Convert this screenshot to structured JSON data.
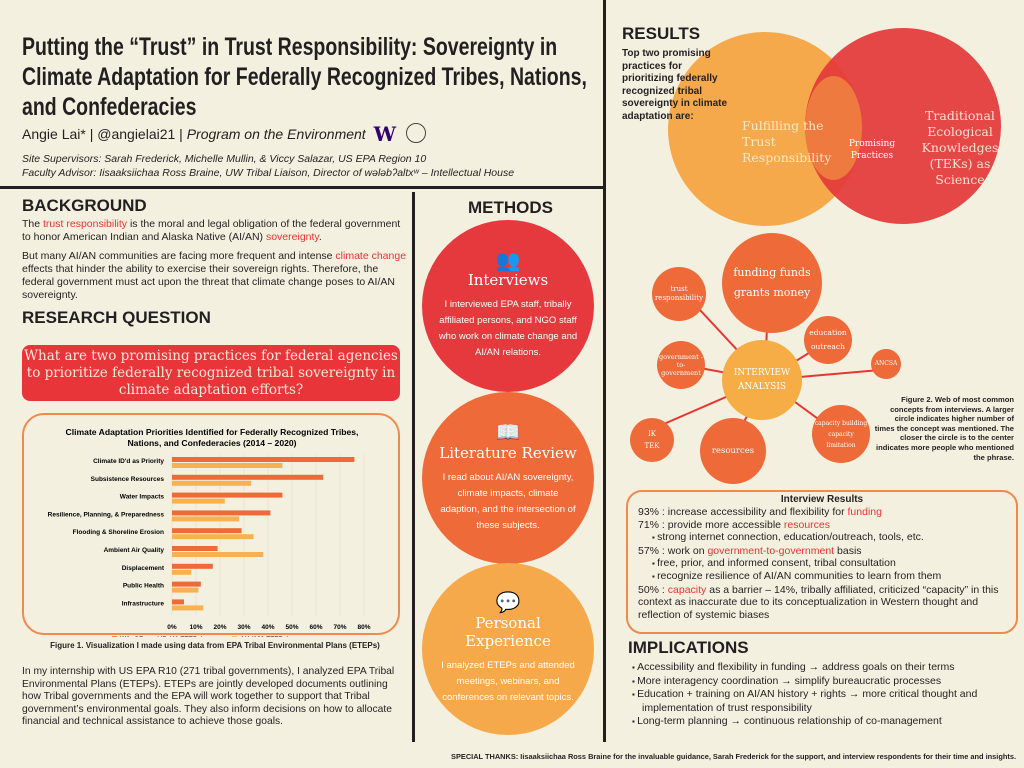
{
  "header": {
    "title": "Putting the “Trust” in Trust Responsibility: Sovereignty in Climate Adaptation for Federally Recognized Tribes, Nations, and Confederacies",
    "author": "Angie Lai* | @angielai21 |",
    "program": "Program on the Environment",
    "logo_uw": "W",
    "supervisors": "Site Supervisors: Sarah Frederick, Michelle Mullin, & Viccy Salazar, US EPA Region 10",
    "advisor": "Faculty Advisor: Iisaaksiichaa Ross Braine, UW Tribal Liaison, Director of wǝɫǝbʔaltxʷ – Intellectual House"
  },
  "background": {
    "heading": "BACKGROUND",
    "p1": [
      "The ",
      "trust responsibility",
      " is the moral and legal obligation of the federal government to honor American Indian and Alaska Native (AI/AN) ",
      "sovereignty",
      "."
    ],
    "p2": [
      "But many AI/AN communities are facing more frequent and intense ",
      "climate change",
      " effects that hinder the ability to exercise their sovereign rights. Therefore, the federal government must act upon the threat that climate change poses to AI/AN sovereignty."
    ]
  },
  "research_question": {
    "heading": "RESEARCH QUESTION",
    "text": "What are two promising practices for federal agencies to prioritize federally recognized tribal sovereignty in climate adaptation efforts?"
  },
  "chart_data": {
    "type": "bar",
    "orientation": "horizontal",
    "title": "Climate Adaptation Priorities Identified for Federally Recognized Tribes, Nations, and Confederacies (2014 – 2020)",
    "categories": [
      "Climate ID'd as Priority",
      "Subsistence Resources",
      "Water Impacts",
      "Resilience, Planning, & Preparedness",
      "Flooding & Shoreline Erosion",
      "Ambient Air Quality",
      "Displacement",
      "Public Health",
      "Infrastructure"
    ],
    "series": [
      {
        "name": "WA, OR, and ID (41 ETEPs)",
        "color": "#ee6a38",
        "values": [
          76,
          63,
          46,
          41,
          29,
          19,
          17,
          12,
          5
        ]
      },
      {
        "name": "AK (189 ETEPs)",
        "color": "#f8b150",
        "values": [
          46,
          33,
          22,
          28,
          34,
          38,
          8,
          11,
          13
        ]
      }
    ],
    "xticks": [
      "0%",
      "10%",
      "20%",
      "30%",
      "40%",
      "50%",
      "60%",
      "70%",
      "80%"
    ],
    "xlim": [
      0,
      80
    ],
    "legend": "bottom",
    "caption": "Figure 1. Visualization I made using data from EPA Tribal Environmental Plans (ETEPs)"
  },
  "internship_text": "In my internship with US EPA R10 (271 tribal governments), I analyzed EPA Tribal Environmental Plans (ETEPs). ETEPs are jointly developed documents outlining how Tribal governments and the EPA will work together to support that Tribal government’s environmental goals. They also inform decisions on how to allocate financial and technical assistance to achieve those goals.",
  "methods": {
    "heading": "METHODS",
    "items": [
      {
        "title": "Interviews",
        "text": "I interviewed EPA staff, tribally affiliated persons, and NGO staff who work on climate change and AI/AN relations.",
        "icon": "people-icon"
      },
      {
        "title": "Literature Review",
        "text": "I read about AI/AN sovereignty, climate impacts, climate adaption, and the intersection of these subjects.",
        "icon": "book-icon"
      },
      {
        "title": "Personal Experience",
        "text": "I analyzed ETEPs and attended meetings, webinars, and conferences on relevant topics.",
        "icon": "speech-bubbles-icon"
      }
    ]
  },
  "results": {
    "heading": "RESULTS",
    "intro": "Top two promising practices for prioritizing federally recognized tribal sovereignty in climate adaptation are:",
    "venn": {
      "left": "Fulfilling the Trust Responsibility",
      "center": "Promising Practices",
      "right": "Traditional Ecological Knowledges (TEKs) as Science",
      "left_color": "#f6a94a",
      "right_color": "#e33a3a"
    },
    "web": {
      "center": "INTERVIEW ANALYSIS",
      "nodes": [
        "funding funds grants money",
        "trust responsibility",
        "education outreach",
        "government -to- government",
        "ANCSA",
        "IK TEK",
        "resources",
        "capacity building capacity limitation"
      ],
      "caption": "Figure 2. Web of most common concepts from interviews. A larger circle indicates higher number of times the concept was mentioned. The closer the circle is to the center indicates more people who mentioned the phrase."
    },
    "interview_results": {
      "heading": "Interview Results",
      "r1": [
        "93% : increase accessibility and flexibility for ",
        "funding"
      ],
      "r2": [
        "71% : provide more accessible ",
        "resources"
      ],
      "r2a": "strong internet connection, education/outreach, tools, etc.",
      "r3": [
        "57% : work on ",
        "government-to-government",
        " basis"
      ],
      "r3a": "free, prior, and informed consent, tribal consultation",
      "r3b": "recognize resilience of AI/AN communities to learn from them",
      "r4": [
        "50% : ",
        "capacity",
        " as a barrier – 14%, tribally affiliated, criticized “capacity” in this context as inaccurate due to its conceptualization in Western thought and reflection of systemic biases"
      ]
    }
  },
  "implications": {
    "heading": "IMPLICATIONS",
    "items": [
      "Accessibility and flexibility in funding → address goals on their terms",
      "More interagency coordination → simplify bureaucratic processes",
      "Education + training on AI/AN history + rights → more critical thought and implementation of trust responsibility",
      "Long-term planning → continuous relationship of co-management"
    ]
  },
  "thanks": "SPECIAL THANKS: Iisaaksiichaa Ross Braine for the invaluable guidance, Sarah Frederick for the support, and interview respondents for their time and insights."
}
